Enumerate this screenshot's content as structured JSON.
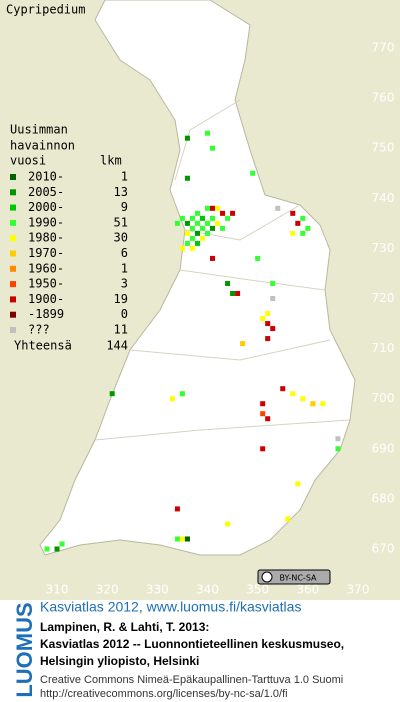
{
  "title": "Cypripedium",
  "legend": {
    "header": [
      "Uusimman",
      "havainnon",
      "vuosi"
    ],
    "count_header": "lkm",
    "rows": [
      {
        "label": "2010-",
        "count": 1,
        "color": "#006400"
      },
      {
        "label": "2005-",
        "count": 13,
        "color": "#009600"
      },
      {
        "label": "2000-",
        "count": 9,
        "color": "#00c800"
      },
      {
        "label": "1990-",
        "count": 51,
        "color": "#33ff33"
      },
      {
        "label": "1980-",
        "count": 30,
        "color": "#ffff00"
      },
      {
        "label": "1970-",
        "count": 6,
        "color": "#ffcc00"
      },
      {
        "label": "1960-",
        "count": 1,
        "color": "#ff8c00"
      },
      {
        "label": "1950-",
        "count": 3,
        "color": "#ff4000"
      },
      {
        "label": "1900-",
        "count": 19,
        "color": "#cc0000"
      },
      {
        "label": "-1899",
        "count": 0,
        "color": "#800000"
      },
      {
        "label": "???",
        "count": 11,
        "color": "#c0c0c0"
      }
    ],
    "total_label": "Yhteensä",
    "total": 144
  },
  "grid": {
    "northing_ticks": [
      770,
      760,
      750,
      740,
      730,
      720,
      710,
      700,
      690,
      680,
      670
    ],
    "easting_ticks": [
      310,
      320,
      330,
      340,
      350,
      360,
      370
    ],
    "northing_lim": [
      770,
      670
    ],
    "easting_lim": [
      310,
      370
    ]
  },
  "squares": [
    {
      "n": 753,
      "e": 340,
      "period": "1990-"
    },
    {
      "n": 752,
      "e": 336,
      "period": "2005-"
    },
    {
      "n": 750,
      "e": 341,
      "period": "1990-"
    },
    {
      "n": 745,
      "e": 349,
      "period": "1990-"
    },
    {
      "n": 744,
      "e": 336,
      "period": "2005-"
    },
    {
      "n": 738,
      "e": 340,
      "period": "1990-"
    },
    {
      "n": 738,
      "e": 342,
      "period": "1980-"
    },
    {
      "n": 738,
      "e": 341,
      "period": "1900-"
    },
    {
      "n": 737,
      "e": 343,
      "period": "1900-"
    },
    {
      "n": 737,
      "e": 345,
      "period": "1900-"
    },
    {
      "n": 737,
      "e": 338,
      "period": "1990-"
    },
    {
      "n": 736,
      "e": 335,
      "period": "1990-"
    },
    {
      "n": 736,
      "e": 337,
      "period": "1990-"
    },
    {
      "n": 736,
      "e": 339,
      "period": "2000-"
    },
    {
      "n": 736,
      "e": 341,
      "period": "1990-"
    },
    {
      "n": 736,
      "e": 344,
      "period": "1990-"
    },
    {
      "n": 735,
      "e": 334,
      "period": "1990-"
    },
    {
      "n": 735,
      "e": 336,
      "period": "2005-"
    },
    {
      "n": 735,
      "e": 338,
      "period": "1990-"
    },
    {
      "n": 735,
      "e": 340,
      "period": "1990-"
    },
    {
      "n": 735,
      "e": 342,
      "period": "1980-"
    },
    {
      "n": 734,
      "e": 337,
      "period": "1990-"
    },
    {
      "n": 734,
      "e": 339,
      "period": "1990-"
    },
    {
      "n": 734,
      "e": 341,
      "period": "2005-"
    },
    {
      "n": 734,
      "e": 343,
      "period": "1990-"
    },
    {
      "n": 733,
      "e": 336,
      "period": "1980-"
    },
    {
      "n": 733,
      "e": 338,
      "period": "2005-"
    },
    {
      "n": 733,
      "e": 340,
      "period": "1990-"
    },
    {
      "n": 732,
      "e": 337,
      "period": "1990-"
    },
    {
      "n": 732,
      "e": 339,
      "period": "1980-"
    },
    {
      "n": 731,
      "e": 336,
      "period": "1990-"
    },
    {
      "n": 731,
      "e": 338,
      "period": "2000-"
    },
    {
      "n": 730,
      "e": 335,
      "period": "1980-"
    },
    {
      "n": 730,
      "e": 337,
      "period": "1980-"
    },
    {
      "n": 728,
      "e": 341,
      "period": "1900-"
    },
    {
      "n": 728,
      "e": 350,
      "period": "1990-"
    },
    {
      "n": 738,
      "e": 354,
      "period": "???"
    },
    {
      "n": 737,
      "e": 357,
      "period": "1900-"
    },
    {
      "n": 736,
      "e": 359,
      "period": "1990-"
    },
    {
      "n": 735,
      "e": 358,
      "period": "1900-"
    },
    {
      "n": 734,
      "e": 360,
      "period": "1990-"
    },
    {
      "n": 733,
      "e": 357,
      "period": "1980-"
    },
    {
      "n": 733,
      "e": 359,
      "period": "1990-"
    },
    {
      "n": 723,
      "e": 344,
      "period": "2005-"
    },
    {
      "n": 721,
      "e": 346,
      "period": "1900-"
    },
    {
      "n": 721,
      "e": 345,
      "period": "2005-"
    },
    {
      "n": 723,
      "e": 353,
      "period": "1990-"
    },
    {
      "n": 720,
      "e": 353,
      "period": "???"
    },
    {
      "n": 717,
      "e": 352,
      "period": "1980-"
    },
    {
      "n": 716,
      "e": 351,
      "period": "1980-"
    },
    {
      "n": 715,
      "e": 352,
      "period": "1900-"
    },
    {
      "n": 714,
      "e": 353,
      "period": "1900-"
    },
    {
      "n": 712,
      "e": 352,
      "period": "1900-"
    },
    {
      "n": 711,
      "e": 347,
      "period": "1970-"
    },
    {
      "n": 702,
      "e": 355,
      "period": "1900-"
    },
    {
      "n": 701,
      "e": 357,
      "period": "1980-"
    },
    {
      "n": 700,
      "e": 359,
      "period": "1980-"
    },
    {
      "n": 699,
      "e": 361,
      "period": "1970-"
    },
    {
      "n": 699,
      "e": 363,
      "period": "1980-"
    },
    {
      "n": 699,
      "e": 351,
      "period": "1900-"
    },
    {
      "n": 697,
      "e": 351,
      "period": "1950-"
    },
    {
      "n": 696,
      "e": 352,
      "period": "1900-"
    },
    {
      "n": 690,
      "e": 351,
      "period": "1900-"
    },
    {
      "n": 692,
      "e": 366,
      "period": "???"
    },
    {
      "n": 690,
      "e": 366,
      "period": "1990-"
    },
    {
      "n": 701,
      "e": 321,
      "period": "2005-"
    },
    {
      "n": 700,
      "e": 333,
      "period": "1980-"
    },
    {
      "n": 701,
      "e": 335,
      "period": "1990-"
    },
    {
      "n": 683,
      "e": 358,
      "period": "1980-"
    },
    {
      "n": 676,
      "e": 356,
      "period": "1980-"
    },
    {
      "n": 678,
      "e": 334,
      "period": "1900-"
    },
    {
      "n": 675,
      "e": 344,
      "period": "1980-"
    },
    {
      "n": 672,
      "e": 334,
      "period": "1990-"
    },
    {
      "n": 672,
      "e": 335,
      "period": "1980-"
    },
    {
      "n": 672,
      "e": 336,
      "period": "2010-"
    },
    {
      "n": 670,
      "e": 308,
      "period": "1990-"
    },
    {
      "n": 670,
      "e": 310,
      "period": "2005-"
    },
    {
      "n": 671,
      "e": 311,
      "period": "1990-"
    }
  ],
  "credits": {
    "logo": "LUOMUS",
    "link": "Kasviatlas 2012, www.luomus.fi/kasviatlas",
    "citation": [
      "Lampinen, R. & Lahti, T. 2013:",
      "Kasviatlas 2012 -- Luonnontieteellinen keskusmuseo,",
      "Helsingin yliopisto, Helsinki"
    ],
    "license": [
      "Creative Commons Nimeä-Epäkaupallinen-Tarttuva 1.0 Suomi",
      "http://creativecommons.org/licenses/by-nc-sa/1.0/fi"
    ],
    "badge": "BY-NC-SA"
  }
}
